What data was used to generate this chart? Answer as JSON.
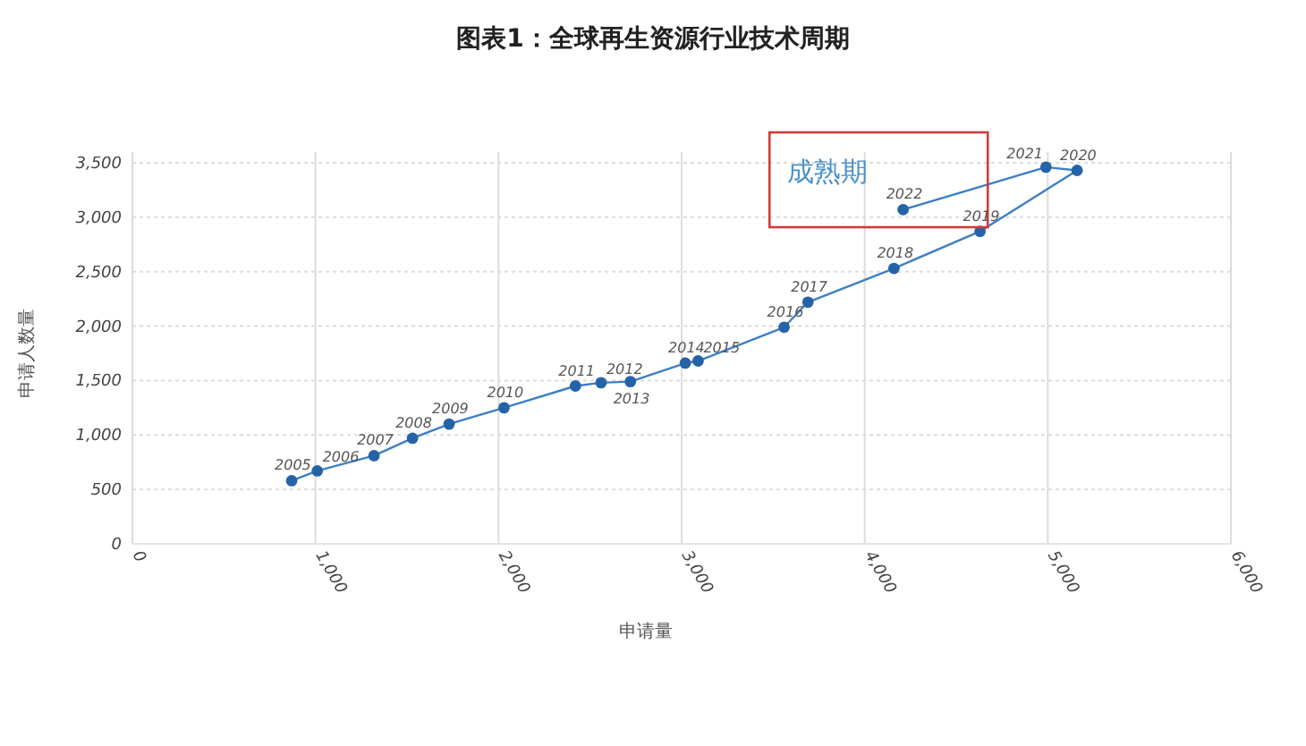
{
  "chart_data": {
    "type": "line",
    "title": "图表1：全球再生资源行业技术周期",
    "xlabel": "申请量",
    "ylabel": "申请人数量",
    "x": [
      870,
      1010,
      1320,
      1530,
      1730,
      2030,
      2420,
      2560,
      2720,
      3020,
      3090,
      3560,
      3690,
      4160,
      4630,
      5160,
      4990,
      4210
    ],
    "series": [
      {
        "color": "#3d7fc4",
        "values": [
          580,
          670,
          810,
          970,
          1100,
          1250,
          1450,
          1480,
          1490,
          1660,
          1680,
          1990,
          2220,
          2530,
          2870,
          3430,
          3460,
          3070
        ]
      }
    ],
    "xlim": [
      0,
      6000
    ],
    "ylim": [
      0,
      3500
    ],
    "xticks": [
      0,
      {
        "value": 1000,
        "label": "1,000"
      },
      {
        "value": 2000,
        "label": "2,000"
      },
      {
        "value": 3000,
        "label": "3,000"
      },
      {
        "value": 4000,
        "label": "4,000"
      },
      {
        "value": 5000,
        "label": "5,000"
      },
      {
        "value": 6000,
        "label": "6,000"
      }
    ],
    "yticks": [
      0,
      {
        "value": 500,
        "label": "500"
      },
      {
        "value": 1000,
        "label": "1,000"
      },
      {
        "value": 1500,
        "label": "1,500"
      },
      {
        "value": 2000,
        "label": "2,000"
      },
      {
        "value": 2500,
        "label": "2,500"
      },
      {
        "value": 3000,
        "label": "3,000"
      },
      {
        "value": 3500,
        "label": "3,500"
      }
    ],
    "grid": true,
    "marker": "circle",
    "line_style": "solid",
    "annotations": [
      "成熟期",
      {
        "text": "2005",
        "x": 870,
        "y": 580
      },
      {
        "text": "2006",
        "x": 1010,
        "y": 670
      },
      {
        "text": "2007",
        "x": 1320,
        "y": 810
      },
      {
        "text": "2008",
        "x": 1530,
        "y": 970
      },
      {
        "text": "2009",
        "x": 1730,
        "y": 1100
      },
      {
        "text": "2010",
        "x": 2030,
        "y": 1250
      },
      {
        "text": "2011",
        "x": 2420,
        "y": 1450
      },
      {
        "text": "2012",
        "x": 2560,
        "y": 1480
      },
      {
        "text": "2013",
        "x": 2720,
        "y": 1490
      },
      {
        "text": "2014",
        "x": 3020,
        "y": 1660
      },
      {
        "text": "2015",
        "x": 3090,
        "y": 1680
      },
      {
        "text": "2016",
        "x": 3560,
        "y": 1990
      },
      {
        "text": "2017",
        "x": 3690,
        "y": 2220
      },
      {
        "text": "2018",
        "x": 4160,
        "y": 2530
      },
      {
        "text": "2019",
        "x": 4630,
        "y": 2870
      },
      {
        "text": "2020",
        "x": 5160,
        "y": 3430
      },
      {
        "text": "2021",
        "x": 4990,
        "y": 3460
      },
      {
        "text": "2022",
        "x": 4210,
        "y": 3070
      }
    ]
  }
}
